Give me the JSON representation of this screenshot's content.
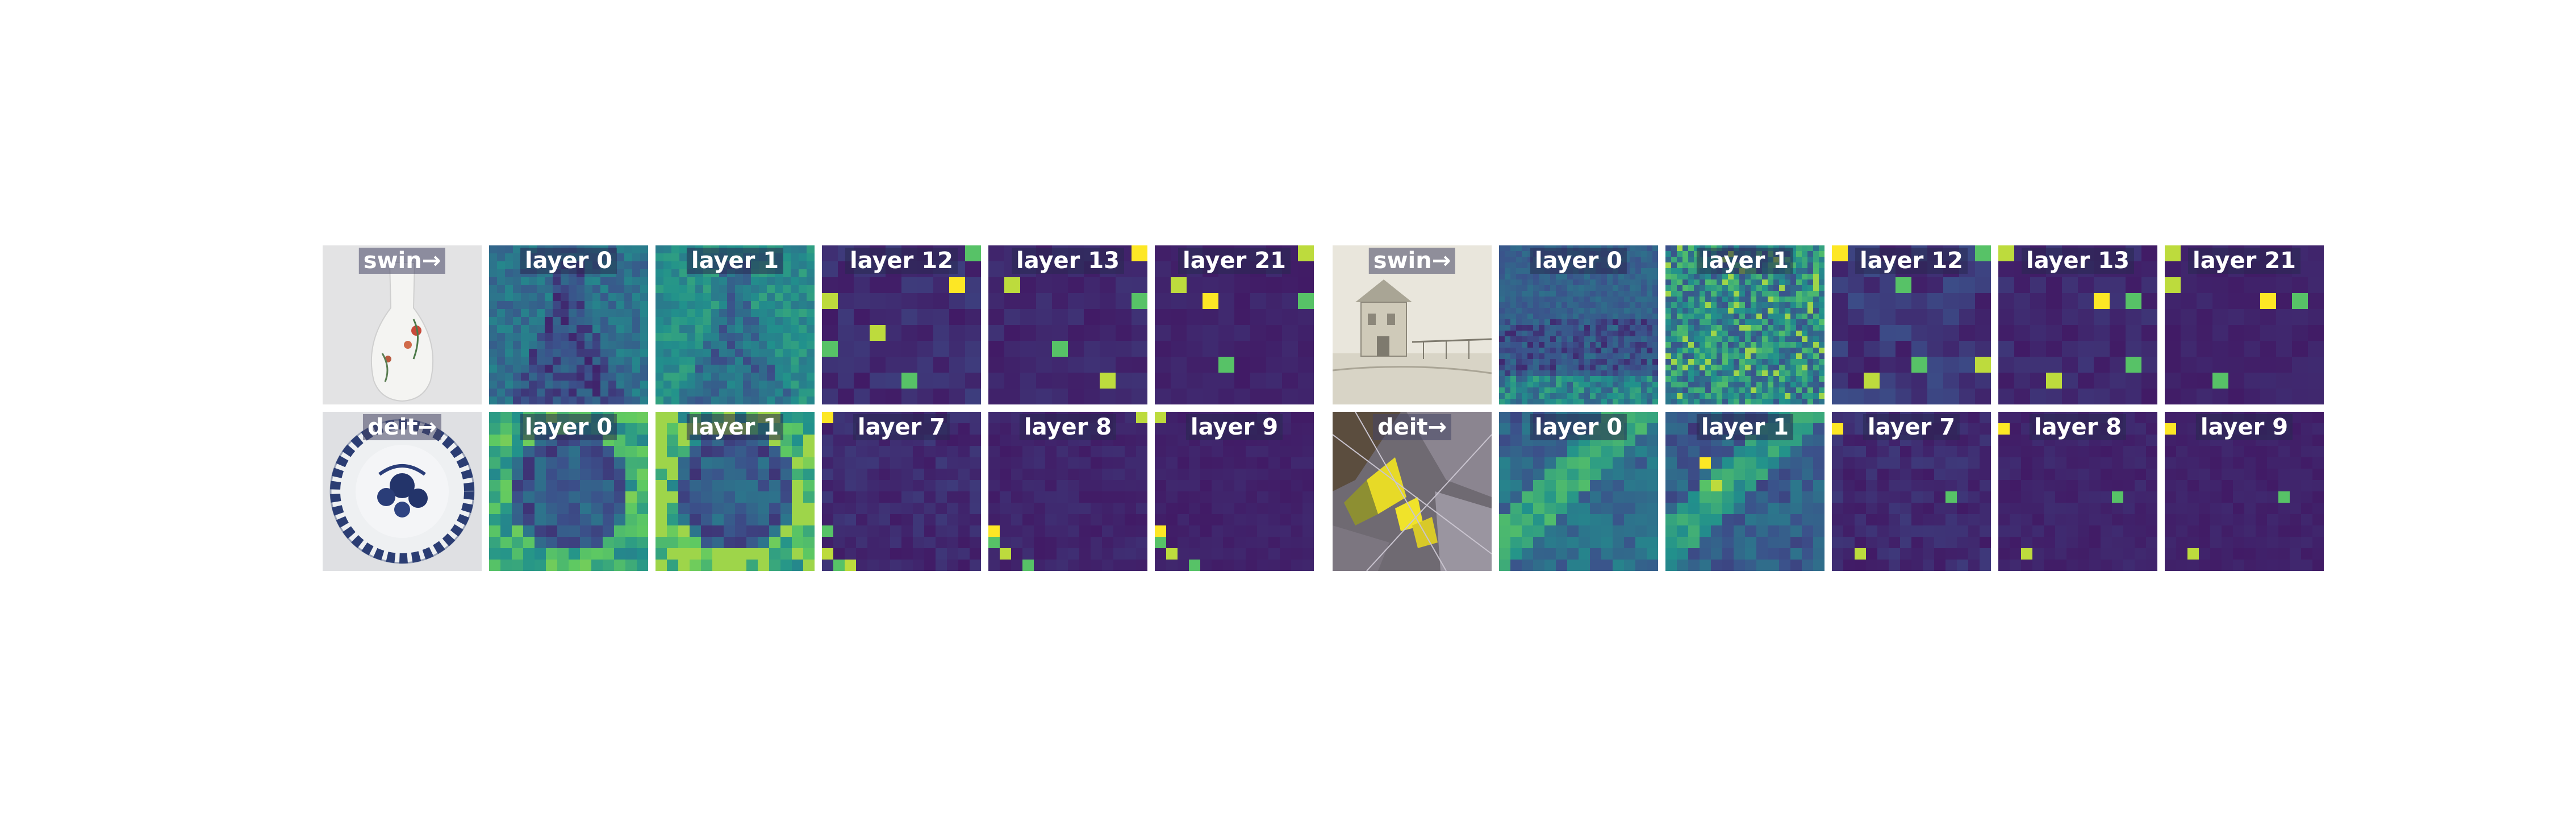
{
  "panels": [
    {
      "rows": [
        {
          "model_label": "swin→",
          "image": "porcelain-vase",
          "layers": [
            "layer 0",
            "layer 1",
            "layer 12",
            "layer 13",
            "layer 21"
          ]
        },
        {
          "model_label": "deit→",
          "image": "blue-white-plate",
          "layers": [
            "layer 0",
            "layer 1",
            "layer 7",
            "layer 8",
            "layer 9"
          ]
        }
      ]
    },
    {
      "rows": [
        {
          "model_label": "swin→",
          "image": "building-drawing",
          "layers": [
            "layer 0",
            "layer 1",
            "layer 12",
            "layer 13",
            "layer 21"
          ]
        },
        {
          "model_label": "deit→",
          "image": "stained-glass-detail",
          "layers": [
            "layer 0",
            "layer 1",
            "layer 7",
            "layer 8",
            "layer 9"
          ]
        }
      ]
    }
  ],
  "colormap": [
    "#440154",
    "#3b528b",
    "#21918c",
    "#5ec962",
    "#fde725"
  ]
}
